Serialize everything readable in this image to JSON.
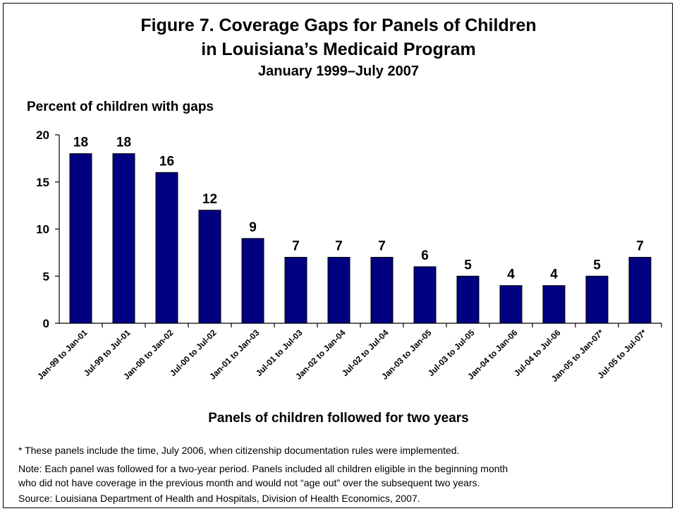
{
  "chart_data": {
    "type": "bar",
    "title": "Figure 7. Coverage Gaps for Panels of Children",
    "title_line2": "in Louisiana’s Medicaid Program",
    "subtitle": "January 1999–July 2007",
    "ylabel": "Percent of children with gaps",
    "xlabel": "Panels of children followed for two years",
    "ylim": [
      0,
      20
    ],
    "yticks": [
      "0",
      "5",
      "10",
      "15",
      "20"
    ],
    "ytick_values": [
      0,
      5,
      10,
      15,
      20
    ],
    "categories": [
      "Jan-99 to Jan-01",
      "Jul-99 to Jul-01",
      "Jan-00 to Jan-02",
      "Jul-00 to Jul-02",
      "Jan-01 to Jan-03",
      "Jul-01 to Jul-03",
      "Jan-02 to Jan-04",
      "Jul-02 to Jul-04",
      "Jan-03 to Jan-05",
      "Jul-03 to Jul-05",
      "Jan-04 to Jan-06",
      "Jul-04 to Jul-06",
      "Jan-05 to Jan-07*",
      "Jul-05 to Jul-07*"
    ],
    "values": [
      18,
      18,
      16,
      12,
      9,
      7,
      7,
      7,
      6,
      5,
      4,
      4,
      5,
      7
    ],
    "data_labels": [
      "18",
      "18",
      "16",
      "12",
      "9",
      "7",
      "7",
      "7",
      "6",
      "5",
      "4",
      "4",
      "5",
      "7"
    ],
    "grid": false,
    "legend": "none",
    "bar_color": "#000080"
  },
  "notes": {
    "asterisk": "* These panels include the time, July 2006, when citizenship documentation rules were implemented.",
    "note_line1": "Note: Each panel was followed for a two-year period. Panels included all children eligible in the beginning month",
    "note_line2": "who did not have coverage in  the previous month and would not “age out” over the subsequent two years.",
    "source": "Source: Louisiana Department of Health and Hospitals, Division of Health Economics, 2007."
  }
}
